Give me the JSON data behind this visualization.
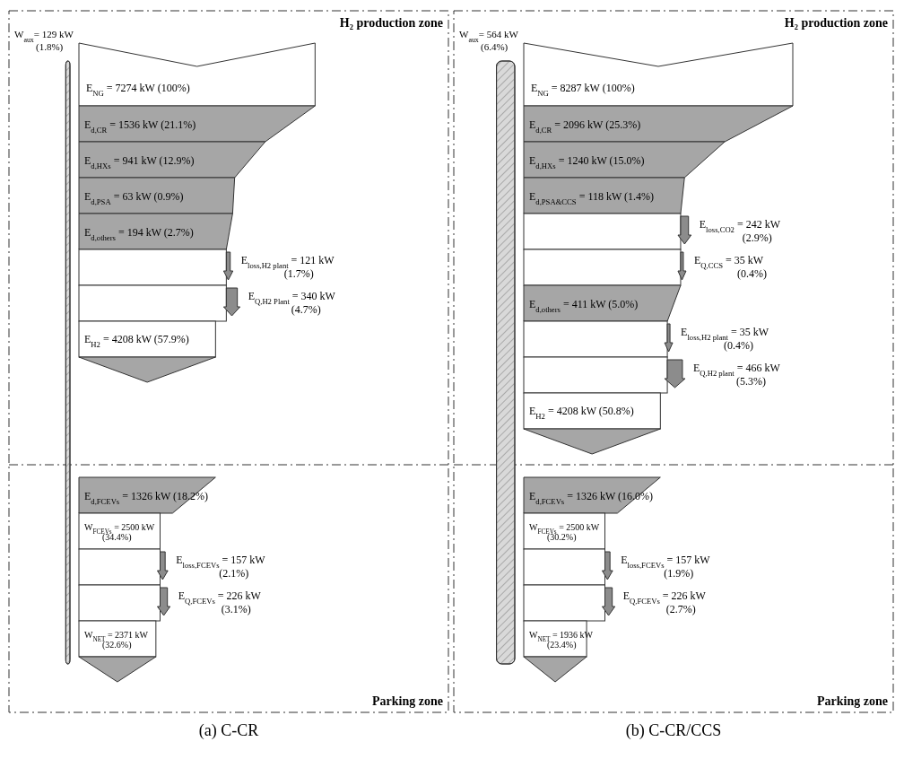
{
  "chart_data": [
    {
      "type": "other",
      "title": "H₂ production zone",
      "categories": [
        "W$_{aux}$",
        "E$_{NG}$",
        "E$_{d,CR}$",
        "E$_{d,HXs}$",
        "E$_{d,PSA}$",
        "E$_{d,others}$",
        "E$_{loss,H2 plant}$",
        "E$_{Q,H2 Plant}$",
        "E$_{H2}$"
      ],
      "values": [
        129,
        7274,
        1536,
        941,
        63,
        194,
        121,
        340,
        4208
      ],
      "value_labels": [
        "= 129 kW (1.8%)",
        "= 7274 kW (100%)",
        "= 1536 kW (21.1%)",
        "= 941 kW (12.9%)",
        "= 63 kW (0.9%)",
        "= 194 kW (2.7%)",
        "= 121 kW (1.7%)",
        "= 340 kW (4.7%)",
        "= 4208 kW (57.9%)"
      ],
      "colors": [
        "#d9d9d9",
        "#ffffff",
        "#a6a6a6",
        "#a6a6a6",
        "#a6a6a6",
        "#a6a6a6",
        "#8c8c8c",
        "#8c8c8c",
        "#ffffff"
      ]
    },
    {
      "type": "other",
      "title": "Parking zone",
      "annotations": [
        "(a) C-CR"
      ],
      "categories": [
        "E$_{d,FCEVs}$",
        "W$_{FCEVs}$",
        "E$_{loss,FCEVs}$",
        "E$_{Q,FCEVs}$",
        "W$_{NET}$"
      ],
      "values": [
        1326,
        2500,
        157,
        226,
        2371
      ],
      "value_labels": [
        "= 1326 kW (18.2%)",
        "= 2500 kW (34.4%)",
        "= 157 kW (2.1%)",
        "= 226 kW (3.1%)",
        "= 2371 kW (32.6%)"
      ],
      "colors": [
        "#a6a6a6",
        "#ffffff",
        "#8c8c8c",
        "#8c8c8c",
        "#ffffff"
      ]
    },
    {
      "type": "other",
      "title": "H₂ production zone",
      "categories": [
        "W$_{aux}$",
        "E$_{NG}$",
        "E$_{d,CR}$",
        "E$_{d,HXs}$",
        "E$_{d,PSA&CCS}$",
        "E$_{loss,CO2}$",
        "E$_{Q,CCS}$",
        "E$_{d,others}$",
        "E$_{loss,H2 plant}$",
        "E$_{Q,H2 plant}$",
        "E$_{H2}$"
      ],
      "values": [
        564,
        8287,
        2096,
        1240,
        118,
        242,
        35,
        411,
        35,
        466,
        4208
      ],
      "value_labels": [
        "= 564 kW (6.4%)",
        "= 8287 kW (100%)",
        "= 2096 kW (25.3%)",
        "= 1240 kW (15.0%)",
        "= 118 kW (1.4%)",
        "= 242 kW (2.9%)",
        "= 35 kW (0.4%)",
        "= 411 kW (5.0%)",
        "= 35 kW (0.4%)",
        "= 466 kW (5.3%)",
        "= 4208 kW (50.8%)"
      ],
      "colors": [
        "#d9d9d9",
        "#ffffff",
        "#a6a6a6",
        "#a6a6a6",
        "#a6a6a6",
        "#8c8c8c",
        "#8c8c8c",
        "#a6a6a6",
        "#8c8c8c",
        "#8c8c8c",
        "#ffffff"
      ]
    },
    {
      "type": "other",
      "title": "Parking zone",
      "annotations": [
        "(b) C-CR/CCS"
      ],
      "categories": [
        "E$_{d,FCEVs}$",
        "W$_{FCEVs}$",
        "E$_{loss,FCEVs}$",
        "E$_{Q,FCEVs}$",
        "W$_{NET}$"
      ],
      "values": [
        1326,
        2500,
        157,
        226,
        1936
      ],
      "value_labels": [
        "= 1326 kW (16.0%)",
        "= 2500 kW (30.2%)",
        "= 157 kW (1.9%)",
        "= 226 kW (2.7%)",
        "= 1936 kW (23.4%)"
      ],
      "colors": [
        "#a6a6a6",
        "#ffffff",
        "#8c8c8c",
        "#8c8c8c",
        "#ffffff"
      ]
    }
  ]
}
